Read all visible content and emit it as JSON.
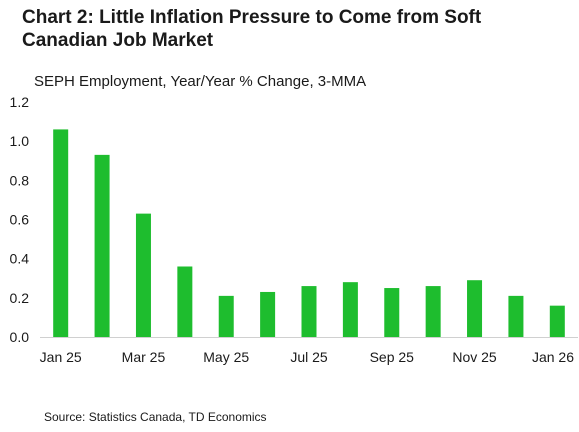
{
  "title": "Chart 2: Little Inflation Pressure to Come from Soft Canadian Job Market",
  "subtitle": "SEPH Employment, Year/Year % Change, 3-MMA",
  "source": "Source: Statistics Canada, TD Economics",
  "colors": {
    "bar": "#1ebd2e",
    "axis": "#d0d0d0",
    "text": "#1a1a1a"
  },
  "chart_data": {
    "type": "bar",
    "title": "Chart 2: Little Inflation Pressure to Come from Soft Canadian Job Market",
    "subtitle": "SEPH Employment, Year/Year % Change, 3-MMA",
    "xlabel": "",
    "ylabel": "",
    "categories": [
      "Jan 25",
      "Feb 25",
      "Mar 25",
      "Apr 25",
      "May 25",
      "Jun 25",
      "Jul 25",
      "Aug 25",
      "Sep 25",
      "Oct 25",
      "Nov 25",
      "Dec 25",
      "Jan 26"
    ],
    "x_tick_labels": [
      "Jan 25",
      "Mar 25",
      "May 25",
      "Jul 25",
      "Sep 25",
      "Nov 25",
      "Jan 26"
    ],
    "values": [
      1.06,
      0.93,
      0.63,
      0.36,
      0.21,
      0.23,
      0.26,
      0.28,
      0.25,
      0.26,
      0.29,
      0.21,
      0.16
    ],
    "ylim": [
      0,
      1.2
    ],
    "y_ticks": [
      "0.0",
      "0.2",
      "0.4",
      "0.6",
      "0.8",
      "1.0",
      "1.2"
    ],
    "grid": false,
    "legend": "none"
  }
}
